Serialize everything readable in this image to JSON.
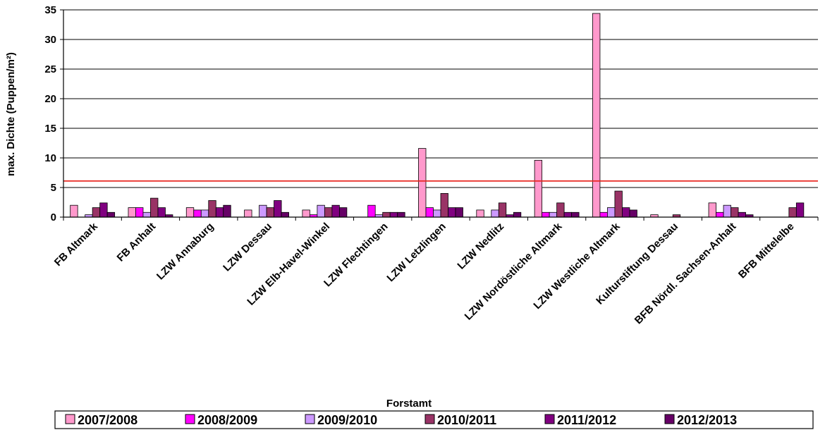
{
  "chart_data": {
    "type": "bar",
    "xlabel": "Forstamt",
    "ylabel": "max. Dichte (Puppen/m²)",
    "ylim": [
      0,
      35
    ],
    "yticks": [
      0,
      5,
      10,
      15,
      20,
      25,
      30,
      35
    ],
    "grid": true,
    "legend_position": "bottom",
    "threshold": {
      "value": 6.1,
      "color": "#e8251f"
    },
    "categories": [
      "FB Altmark",
      "FB Anhalt",
      "LZW Annaburg",
      "LZW Dessau",
      "LZW Elb-Havel-Winkel",
      "LZW Flechtingen",
      "LZW Letzlingen",
      "LZW Nedlitz",
      "LZW Nordöstliche Altmark",
      "LZW Westliche Altmark",
      "Kulturstiftung Dessau",
      "BFB Nördl. Sachsen-Anhalt",
      "BFB Mittelelbe"
    ],
    "series": [
      {
        "name": "2007/2008",
        "color": "#ff99cc",
        "values": [
          2.0,
          1.6,
          1.6,
          1.2,
          1.2,
          0.0,
          11.6,
          1.2,
          9.6,
          34.4,
          0.4,
          2.4,
          0.0
        ]
      },
      {
        "name": "2008/2009",
        "color": "#ff00ff",
        "values": [
          0.0,
          1.6,
          1.2,
          0.0,
          0.4,
          2.0,
          1.6,
          0.0,
          0.8,
          0.8,
          0.0,
          0.8,
          0.0
        ]
      },
      {
        "name": "2009/2010",
        "color": "#cc99ff",
        "values": [
          0.4,
          0.8,
          1.2,
          2.0,
          2.0,
          0.4,
          1.2,
          1.2,
          0.8,
          1.6,
          0.0,
          2.0,
          0.0
        ]
      },
      {
        "name": "2010/2011",
        "color": "#993366",
        "values": [
          1.6,
          3.2,
          2.8,
          1.6,
          1.6,
          0.8,
          4.0,
          2.4,
          2.4,
          4.4,
          0.4,
          1.6,
          1.6
        ]
      },
      {
        "name": "2011/2012",
        "color": "#800080",
        "values": [
          2.4,
          1.6,
          1.6,
          2.8,
          2.0,
          0.8,
          1.6,
          0.4,
          0.8,
          1.6,
          0.0,
          0.8,
          2.4
        ]
      },
      {
        "name": "2012/2013",
        "color": "#660066",
        "values": [
          0.8,
          0.4,
          2.0,
          0.8,
          1.6,
          0.8,
          1.6,
          0.8,
          0.8,
          1.2,
          0.0,
          0.4,
          0.0
        ]
      }
    ]
  }
}
